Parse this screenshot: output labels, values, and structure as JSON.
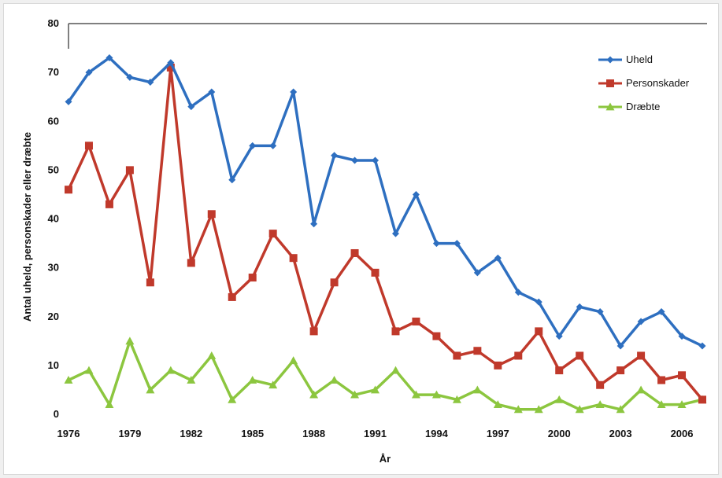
{
  "chart_data": {
    "type": "line",
    "title": "",
    "xlabel": "År",
    "ylabel": "Antal uheld, personskader eller dræbte",
    "ylim": [
      0,
      80
    ],
    "yticks": [
      0,
      10,
      20,
      30,
      40,
      50,
      60,
      70,
      80
    ],
    "xlim": [
      1976,
      2007
    ],
    "xticks": [
      1976,
      1979,
      1982,
      1985,
      1988,
      1991,
      1994,
      1997,
      2000,
      2003,
      2006
    ],
    "grid": false,
    "legend_position": "top-right",
    "x": [
      1976,
      1977,
      1978,
      1979,
      1980,
      1981,
      1982,
      1983,
      1984,
      1985,
      1986,
      1987,
      1988,
      1989,
      1990,
      1991,
      1992,
      1993,
      1994,
      1995,
      1996,
      1997,
      1998,
      1999,
      2000,
      2001,
      2002,
      2003,
      2004,
      2005,
      2006,
      2007
    ],
    "series": [
      {
        "name": "Uheld",
        "color": "#2e6fc0",
        "marker": "diamond",
        "values": [
          64,
          70,
          73,
          69,
          68,
          72,
          63,
          66,
          48,
          55,
          55,
          66,
          39,
          53,
          52,
          52,
          37,
          45,
          35,
          35,
          29,
          32,
          25,
          23,
          16,
          22,
          21,
          14,
          19,
          21,
          16,
          14
        ]
      },
      {
        "name": "Personskader",
        "color": "#c0392b",
        "marker": "square",
        "values": [
          46,
          55,
          43,
          50,
          27,
          71,
          31,
          41,
          24,
          28,
          37,
          32,
          17,
          27,
          33,
          29,
          17,
          19,
          16,
          12,
          13,
          10,
          12,
          17,
          9,
          12,
          6,
          9,
          12,
          7,
          8,
          3
        ]
      },
      {
        "name": "Dræbte",
        "color": "#8cc63f",
        "marker": "triangle",
        "values": [
          7,
          9,
          2,
          15,
          5,
          9,
          7,
          12,
          3,
          7,
          6,
          11,
          4,
          7,
          4,
          5,
          9,
          4,
          4,
          3,
          5,
          2,
          1,
          1,
          3,
          1,
          2,
          1,
          5,
          2,
          2,
          3
        ]
      }
    ]
  }
}
